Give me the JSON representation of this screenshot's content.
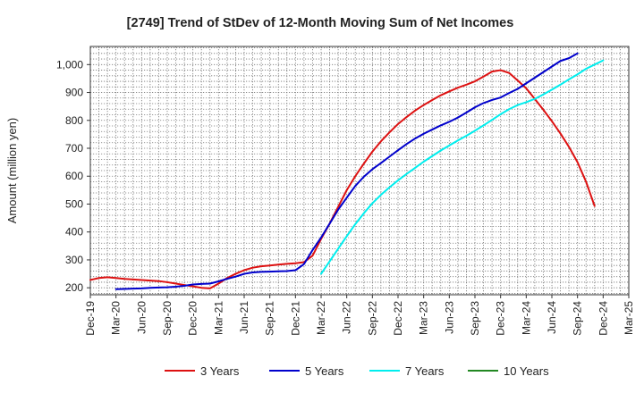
{
  "chart_data": {
    "type": "line",
    "title": "[2749]  Trend of StDev of 12-Month Moving Sum of Net Incomes",
    "ylabel": "Amount (million yen)",
    "xlabel": "",
    "ylim": [
      175,
      1065
    ],
    "yticks": [
      200,
      300,
      400,
      500,
      600,
      700,
      800,
      900,
      1000
    ],
    "ytick_labels": [
      "200",
      "300",
      "400",
      "500",
      "600",
      "700",
      "800",
      "900",
      "1,000"
    ],
    "x_start": "Dec-19",
    "x_end": "Mar-25",
    "xtick_labels": [
      "Dec-19",
      "Mar-20",
      "Jun-20",
      "Sep-20",
      "Dec-20",
      "Mar-21",
      "Jun-21",
      "Sep-21",
      "Dec-21",
      "Mar-22",
      "Jun-22",
      "Sep-22",
      "Dec-22",
      "Mar-23",
      "Jun-23",
      "Sep-23",
      "Dec-23",
      "Mar-24",
      "Jun-24",
      "Sep-24",
      "Dec-24",
      "Mar-25"
    ],
    "grid": true,
    "legend_position": "bottom",
    "series": [
      {
        "name": "3 Years",
        "color": "#dd1111",
        "start": "Dec-19",
        "values": [
          228,
          235,
          238,
          235,
          232,
          230,
          228,
          226,
          224,
          220,
          215,
          210,
          205,
          200,
          198,
          215,
          235,
          250,
          263,
          272,
          277,
          280,
          283,
          286,
          288,
          292,
          315,
          375,
          430,
          490,
          550,
          600,
          645,
          688,
          725,
          757,
          787,
          812,
          835,
          855,
          873,
          890,
          904,
          917,
          928,
          940,
          957,
          975,
          980,
          970,
          943,
          915,
          877,
          838,
          797,
          753,
          705,
          650,
          580,
          493
        ]
      },
      {
        "name": "5 Years",
        "color": "#0000cc",
        "start": "Mar-20",
        "values": [
          195,
          196,
          197,
          198,
          200,
          201,
          202,
          204,
          207,
          212,
          214,
          215,
          223,
          232,
          240,
          250,
          255,
          257,
          258,
          259,
          260,
          263,
          285,
          335,
          380,
          430,
          480,
          523,
          565,
          598,
          625,
          647,
          670,
          693,
          715,
          735,
          752,
          767,
          782,
          795,
          810,
          828,
          847,
          862,
          873,
          882,
          898,
          913,
          933,
          953,
          973,
          993,
          1013,
          1023,
          1040
        ]
      },
      {
        "name": "7 Years",
        "color": "#00eeee",
        "start": "Mar-22",
        "values": [
          250,
          295,
          340,
          385,
          428,
          467,
          503,
          533,
          560,
          585,
          608,
          630,
          652,
          672,
          692,
          710,
          728,
          745,
          763,
          782,
          802,
          822,
          840,
          855,
          865,
          877,
          893,
          910,
          928,
          947,
          965,
          985,
          1000,
          1015
        ]
      },
      {
        "name": "10 Years",
        "color": "#228822",
        "start": "Dec-24",
        "values": []
      }
    ]
  }
}
